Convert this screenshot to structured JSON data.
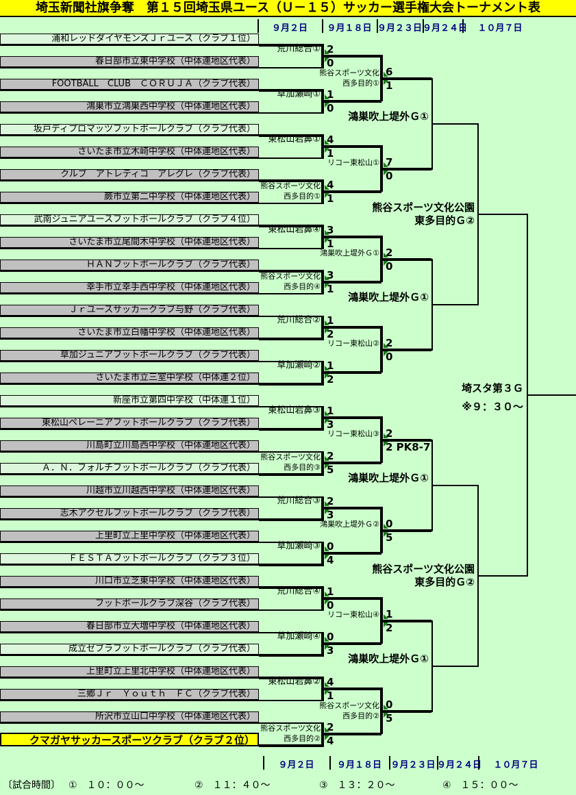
{
  "title": "埼玉新聞社旗争奪　第１５回埼玉県ユース（Ｕ－１５）サッカー選手権大会トーナメント表",
  "dates": [
    "９月２日",
    "９月１８日",
    "９月２３日",
    "９月２４日",
    "１０月７日"
  ],
  "teams": [
    {
      "name": "浦和レッドダイヤモンズＪｒユース（クラブ１位）",
      "style": "plain"
    },
    {
      "name": "春日部市立東中学校（中体連地区代表）",
      "style": "grey"
    },
    {
      "name": "FOOTBALL　CLUB　ＣＯＲＵＪＡ（クラブ代表）",
      "style": "grey"
    },
    {
      "name": "鴻巣市立鴻巣西中学校（中体連地区代表）",
      "style": "grey"
    },
    {
      "name": "坂戸ディプロマッツフットボールクラブ（クラブ代表）",
      "style": "plain"
    },
    {
      "name": "さいたま市立木崎中学校（中体連地区代表）",
      "style": "grey"
    },
    {
      "name": "クルブ　アトレティコ　アレグレ（クラブ代表）",
      "style": "grey"
    },
    {
      "name": "蕨市立第二中学校（中体連地区代表）",
      "style": "grey"
    },
    {
      "name": "武南ジュニアユースフットボールクラブ（クラブ４位）",
      "style": "plain"
    },
    {
      "name": "さいたま市立尾間木中学校（中体連地区代表）",
      "style": "grey"
    },
    {
      "name": "ＨＡＮフットボールクラブ（クラブ代表）",
      "style": "grey"
    },
    {
      "name": "幸手市立幸手西中学校（中体連地区代表）",
      "style": "grey"
    },
    {
      "name": "Ｊｒユースサッカークラブ与野（クラブ代表）",
      "style": "grey"
    },
    {
      "name": "さいたま市立白幡中学校（中体連地区代表）",
      "style": "grey"
    },
    {
      "name": "草加ジュニアフットボールクラブ（クラブ代表）",
      "style": "grey"
    },
    {
      "name": "さいたま市立三室中学校（中体連２位）",
      "style": "grey"
    },
    {
      "name": "新座市立第四中学校（中体連１位）",
      "style": "plain"
    },
    {
      "name": "東松山ペレーニアフットボールクラブ（クラブ代表）",
      "style": "grey"
    },
    {
      "name": "川島町立川島西中学校（中体連地区代表）",
      "style": "grey"
    },
    {
      "name": "Ａ．Ｎ．フォルチフットボールクラブ（クラブ代表）",
      "style": "plain"
    },
    {
      "name": "川越市立川越西中学校（中体連地区代表）",
      "style": "grey"
    },
    {
      "name": "志木アクセルフットボールクラブ（クラブ代表）",
      "style": "grey"
    },
    {
      "name": "上里町立上里中学校（中体連地区代表）",
      "style": "grey"
    },
    {
      "name": "ＦＥＳＴＡフットボールクラブ（クラブ３位）",
      "style": "plain"
    },
    {
      "name": "川口市立芝東中学校（中体連地区代表）",
      "style": "grey"
    },
    {
      "name": "フットボールクラブ深谷（クラブ代表）",
      "style": "grey"
    },
    {
      "name": "春日部市立大増中学校（中体連地区代表）",
      "style": "grey"
    },
    {
      "name": "成立ゼブラフットボールクラブ（クラブ代表）",
      "style": "plain"
    },
    {
      "name": "上里町立上里北中学校（中体連地区代表）",
      "style": "grey"
    },
    {
      "name": "三郷Ｊｒ　Ｙｏｕｔｈ　ＦＣ（クラブ代表）",
      "style": "grey"
    },
    {
      "name": "所沢市立山口中学校（中体連地区代表）",
      "style": "grey"
    },
    {
      "name": "クマガヤサッカースポーツクラブ（クラブ２位）",
      "style": "champion"
    }
  ],
  "round1": [
    {
      "venue": [
        "荒川総合①"
      ],
      "score_top": "2",
      "score_bottom": "0",
      "winner": "top"
    },
    {
      "venue": [
        "草加瀬崎①"
      ],
      "score_top": "1",
      "score_bottom": "0",
      "winner": "top"
    },
    {
      "venue": [
        "東松山岩鼻①"
      ],
      "score_top": "4",
      "score_bottom": "1",
      "winner": "top"
    },
    {
      "venue": [
        "熊谷スポーツ文化",
        "西多目的①"
      ],
      "score_top": "4",
      "score_bottom": "1",
      "winner": "top"
    },
    {
      "venue": [
        "東松山岩鼻④"
      ],
      "score_top": "3",
      "score_bottom": "1",
      "winner": "top"
    },
    {
      "venue": [
        "熊谷スポーツ文化",
        "西多目的④"
      ],
      "score_top": "3",
      "score_bottom": "1",
      "winner": "top"
    },
    {
      "venue": [
        "荒川総合②"
      ],
      "score_top": "1",
      "score_bottom": "2",
      "winner": "bottom"
    },
    {
      "venue": [
        "草加瀬崎②"
      ],
      "score_top": "1",
      "score_bottom": "2",
      "winner": "bottom"
    },
    {
      "venue": [
        "東松山岩鼻③"
      ],
      "score_top": "1",
      "score_bottom": "3",
      "winner": "bottom"
    },
    {
      "venue": [
        "熊谷スポーツ文化",
        "西多目的③"
      ],
      "score_top": "2",
      "score_bottom": "5",
      "winner": "bottom"
    },
    {
      "venue": [
        "荒川総合③"
      ],
      "score_top": "2",
      "score_bottom": "3",
      "winner": "bottom"
    },
    {
      "venue": [
        "草加瀬崎③"
      ],
      "score_top": "0",
      "score_bottom": "4",
      "winner": "bottom"
    },
    {
      "venue": [
        "荒川総合④"
      ],
      "score_top": "1",
      "score_bottom": "0",
      "winner": "top"
    },
    {
      "venue": [
        "草加瀬崎④"
      ],
      "score_top": "0",
      "score_bottom": "3",
      "winner": "bottom"
    },
    {
      "venue": [
        "東松山岩鼻②"
      ],
      "score_top": "4",
      "score_bottom": "1",
      "winner": "top"
    },
    {
      "venue": [
        "熊谷スポーツ文化",
        "西多目的②"
      ],
      "score_top": "2",
      "score_bottom": "4",
      "winner": "bottom"
    }
  ],
  "round2": [
    {
      "venue": [
        "熊谷スポーツ文化",
        "西多目的①"
      ],
      "score_top": "6",
      "score_bottom": "1",
      "winner": "top"
    },
    {
      "venue": [
        "リコー東松山①"
      ],
      "score_top": "7",
      "score_bottom": "0",
      "winner": "top"
    },
    {
      "venue": [
        "鴻巣吹上堤外Ｇ①"
      ],
      "score_top": "2",
      "score_bottom": "0",
      "winner": "top"
    },
    {
      "venue": [
        "リコー東松山②"
      ],
      "score_top": "2",
      "score_bottom": "0",
      "winner": "top"
    },
    {
      "venue": [
        "リコー東松山③"
      ],
      "score_top": "2",
      "score_bottom": "2 PK8-7",
      "winner": "top"
    },
    {
      "venue": [
        "鴻巣吹上堤外Ｇ②"
      ],
      "score_top": "0",
      "score_bottom": "5",
      "winner": "bottom"
    },
    {
      "venue": [
        "リコー東松山④"
      ],
      "score_top": "1",
      "score_bottom": "2",
      "winner": "bottom"
    },
    {
      "venue": [
        "熊谷スポーツ文化",
        "西多目的②"
      ],
      "score_top": "0",
      "score_bottom": "5",
      "winner": "bottom"
    }
  ],
  "quarterfinals": [
    {
      "venue": "鴻巣吹上堤外Ｇ①"
    },
    {
      "venue": "鴻巣吹上堤外Ｇ①"
    },
    {
      "venue": "鴻巣吹上堤外Ｇ①"
    },
    {
      "venue": "鴻巣吹上堤外Ｇ①"
    }
  ],
  "semifinals": [
    {
      "venue": [
        "熊谷スポーツ文化公園",
        "東多目的Ｇ②"
      ]
    },
    {
      "venue": [
        "熊谷スポーツ文化公園",
        "東多目的Ｇ②"
      ]
    }
  ],
  "final": {
    "venue": "埼スタ第３Ｇ",
    "time_note": "※９：３０～"
  },
  "legend": {
    "label": "〔試合時間〕",
    "items": [
      "①　１０：００～",
      "②　１１：４０～",
      "③　１３：２０～",
      "④　１５：００～"
    ]
  },
  "colors": {
    "background": "#ccffcc",
    "title_bg": "#ffff00",
    "grey_bar": "#c0c0c0",
    "champion_bg": "#ffff00",
    "date_text": "#000080",
    "line": "#000000",
    "marker_green": "#1a7a1a"
  }
}
